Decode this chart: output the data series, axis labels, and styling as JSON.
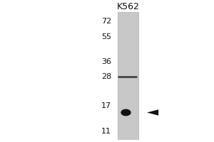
{
  "title": "K562",
  "mw_markers": [
    72,
    55,
    36,
    28,
    17,
    11
  ],
  "outer_bg_color": "#ffffff",
  "lane_bg_color": "#c8c8c8",
  "lane_edge_color": "#aaaaaa",
  "band_strong_mw": 15.2,
  "band_weak_mw": 28.2,
  "band_strong_color": "#111111",
  "band_weak_color": "#444444",
  "arrow_color": "#111111",
  "label_color": "#111111",
  "title_fontsize": 9,
  "marker_fontsize": 8
}
